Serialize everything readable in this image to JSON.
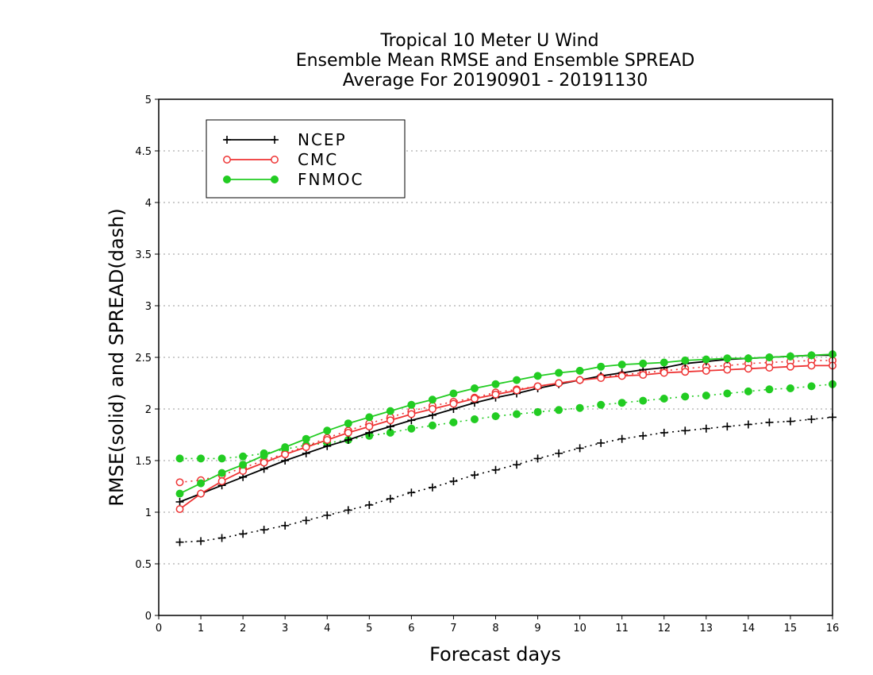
{
  "chart_data": {
    "type": "line",
    "title_lines": [
      "Tropical 10 Meter U Wind",
      "Ensemble Mean RMSE and Ensemble SPREAD",
      "Average For 20190901 - 20191130"
    ],
    "xlabel": "Forecast days",
    "ylabel": "RMSE(solid) and SPREAD(dash)",
    "xlim": [
      0,
      16
    ],
    "ylim": [
      0,
      5
    ],
    "xticks": [
      0,
      1,
      2,
      3,
      4,
      5,
      6,
      7,
      8,
      9,
      10,
      11,
      12,
      13,
      14,
      15,
      16
    ],
    "yticks": [
      0,
      0.5,
      1,
      1.5,
      2,
      2.5,
      3,
      3.5,
      4,
      4.5,
      5
    ],
    "ytick_labels": [
      "0",
      "0.5",
      "1",
      "1.5",
      "2",
      "2.5",
      "3",
      "3.5",
      "4",
      "4.5",
      "5"
    ],
    "grid": "horizontal dotted",
    "legend_position": "top-left",
    "x": [
      0.5,
      1,
      1.5,
      2,
      2.5,
      3,
      3.5,
      4,
      4.5,
      5,
      5.5,
      6,
      6.5,
      7,
      7.5,
      8,
      8.5,
      9,
      9.5,
      10,
      10.5,
      11,
      11.5,
      12,
      12.5,
      13,
      13.5,
      14,
      14.5,
      15,
      15.5,
      16
    ],
    "series": [
      {
        "name": "NCEP",
        "metric": "RMSE",
        "line": "solid",
        "marker": "plus",
        "color": "#000000",
        "values": [
          1.1,
          1.18,
          1.26,
          1.34,
          1.42,
          1.5,
          1.57,
          1.64,
          1.7,
          1.77,
          1.83,
          1.89,
          1.94,
          2.0,
          2.06,
          2.11,
          2.15,
          2.2,
          2.24,
          2.28,
          2.32,
          2.35,
          2.38,
          2.4,
          2.44,
          2.46,
          2.48,
          2.49,
          2.5,
          2.51,
          2.52,
          2.52
        ]
      },
      {
        "name": "NCEP",
        "metric": "SPREAD",
        "line": "dash",
        "marker": "plus",
        "color": "#000000",
        "values": [
          0.71,
          0.72,
          0.75,
          0.79,
          0.83,
          0.87,
          0.92,
          0.97,
          1.02,
          1.07,
          1.13,
          1.19,
          1.24,
          1.3,
          1.36,
          1.41,
          1.46,
          1.52,
          1.57,
          1.62,
          1.67,
          1.71,
          1.74,
          1.77,
          1.79,
          1.81,
          1.83,
          1.85,
          1.87,
          1.88,
          1.9,
          1.92
        ]
      },
      {
        "name": "CMC",
        "metric": "RMSE",
        "line": "solid",
        "marker": "open-circle",
        "color": "#ee3333",
        "values": [
          1.03,
          1.18,
          1.3,
          1.4,
          1.48,
          1.56,
          1.63,
          1.7,
          1.77,
          1.83,
          1.89,
          1.95,
          2.0,
          2.05,
          2.1,
          2.14,
          2.18,
          2.22,
          2.25,
          2.28,
          2.3,
          2.32,
          2.33,
          2.35,
          2.36,
          2.37,
          2.38,
          2.39,
          2.4,
          2.41,
          2.42,
          2.42
        ]
      },
      {
        "name": "CMC",
        "metric": "SPREAD",
        "line": "dash",
        "marker": "open-circle",
        "color": "#ee3333",
        "values": [
          1.29,
          1.31,
          1.36,
          1.43,
          1.5,
          1.57,
          1.64,
          1.72,
          1.79,
          1.86,
          1.92,
          1.98,
          2.03,
          2.07,
          2.11,
          2.16,
          2.19,
          2.22,
          2.25,
          2.28,
          2.31,
          2.33,
          2.35,
          2.37,
          2.39,
          2.41,
          2.42,
          2.44,
          2.45,
          2.46,
          2.47,
          2.47
        ]
      },
      {
        "name": "FNMOC",
        "metric": "RMSE",
        "line": "solid",
        "marker": "filled-circle",
        "color": "#22cc22",
        "values": [
          1.18,
          1.28,
          1.38,
          1.46,
          1.55,
          1.63,
          1.71,
          1.79,
          1.86,
          1.92,
          1.98,
          2.04,
          2.09,
          2.15,
          2.2,
          2.24,
          2.28,
          2.32,
          2.35,
          2.37,
          2.41,
          2.43,
          2.44,
          2.45,
          2.47,
          2.48,
          2.49,
          2.49,
          2.5,
          2.51,
          2.52,
          2.53
        ]
      },
      {
        "name": "FNMOC",
        "metric": "SPREAD",
        "line": "dash",
        "marker": "filled-circle",
        "color": "#22cc22",
        "values": [
          1.52,
          1.52,
          1.52,
          1.54,
          1.57,
          1.61,
          1.65,
          1.67,
          1.7,
          1.74,
          1.77,
          1.81,
          1.84,
          1.87,
          1.9,
          1.93,
          1.95,
          1.97,
          1.99,
          2.01,
          2.04,
          2.06,
          2.08,
          2.1,
          2.12,
          2.13,
          2.15,
          2.17,
          2.19,
          2.2,
          2.22,
          2.24
        ]
      }
    ],
    "legend": [
      {
        "label": "NCEP",
        "marker": "plus",
        "color": "#000000"
      },
      {
        "label": "CMC",
        "marker": "open-circle",
        "color": "#ee3333"
      },
      {
        "label": "FNMOC",
        "marker": "filled-circle",
        "color": "#22cc22"
      }
    ]
  }
}
